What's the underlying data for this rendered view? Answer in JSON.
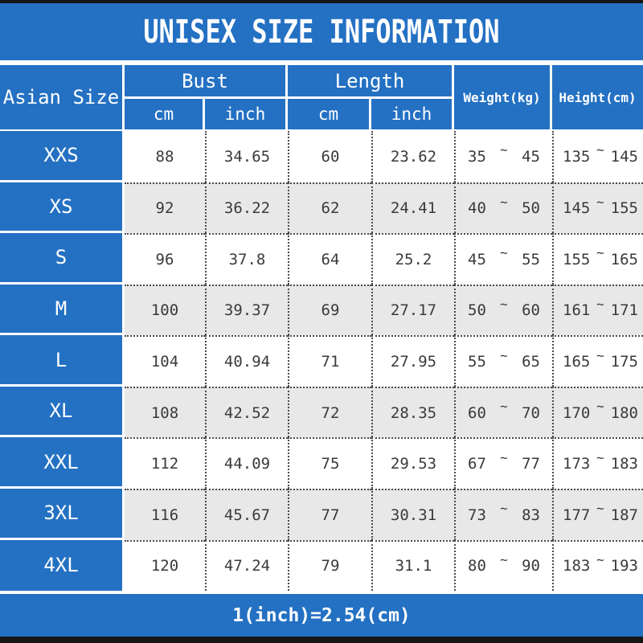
{
  "title": "UNISEX SIZE INFORMATION",
  "table": {
    "corner_header": "Asian Size",
    "group_headers": [
      {
        "label": "Bust",
        "subs": [
          "cm",
          "inch"
        ]
      },
      {
        "label": "Length",
        "subs": [
          "cm",
          "inch"
        ]
      }
    ],
    "span_headers": [
      "Weight(kg)",
      "Height(cm)"
    ],
    "tilde": "~",
    "rows": [
      {
        "size": "XXS",
        "bust_cm": "88",
        "bust_inch": "34.65",
        "length_cm": "60",
        "length_inch": "23.62",
        "weight_min": "35",
        "weight_max": "45",
        "height_min": "135",
        "height_max": "145"
      },
      {
        "size": "XS",
        "bust_cm": "92",
        "bust_inch": "36.22",
        "length_cm": "62",
        "length_inch": "24.41",
        "weight_min": "40",
        "weight_max": "50",
        "height_min": "145",
        "height_max": "155"
      },
      {
        "size": "S",
        "bust_cm": "96",
        "bust_inch": "37.8",
        "length_cm": "64",
        "length_inch": "25.2",
        "weight_min": "45",
        "weight_max": "55",
        "height_min": "155",
        "height_max": "165"
      },
      {
        "size": "M",
        "bust_cm": "100",
        "bust_inch": "39.37",
        "length_cm": "69",
        "length_inch": "27.17",
        "weight_min": "50",
        "weight_max": "60",
        "height_min": "161",
        "height_max": "171"
      },
      {
        "size": "L",
        "bust_cm": "104",
        "bust_inch": "40.94",
        "length_cm": "71",
        "length_inch": "27.95",
        "weight_min": "55",
        "weight_max": "65",
        "height_min": "165",
        "height_max": "175"
      },
      {
        "size": "XL",
        "bust_cm": "108",
        "bust_inch": "42.52",
        "length_cm": "72",
        "length_inch": "28.35",
        "weight_min": "60",
        "weight_max": "70",
        "height_min": "170",
        "height_max": "180"
      },
      {
        "size": "XXL",
        "bust_cm": "112",
        "bust_inch": "44.09",
        "length_cm": "75",
        "length_inch": "29.53",
        "weight_min": "67",
        "weight_max": "77",
        "height_min": "173",
        "height_max": "183"
      },
      {
        "size": "3XL",
        "bust_cm": "116",
        "bust_inch": "45.67",
        "length_cm": "77",
        "length_inch": "30.31",
        "weight_min": "73",
        "weight_max": "83",
        "height_min": "177",
        "height_max": "187"
      },
      {
        "size": "4XL",
        "bust_cm": "120",
        "bust_inch": "47.24",
        "length_cm": "79",
        "length_inch": "31.1",
        "weight_min": "80",
        "weight_max": "90",
        "height_min": "183",
        "height_max": "193"
      }
    ]
  },
  "footer": {
    "note": "1(inch)=2.54(cm)"
  },
  "colors": {
    "accent_blue": "#2471c3",
    "row_alt_gray": "#e8e8e8",
    "bar_black": "#161616"
  }
}
